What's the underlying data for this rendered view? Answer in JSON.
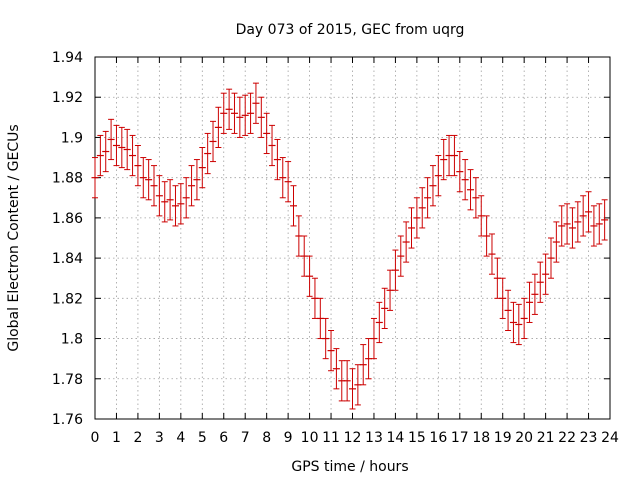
{
  "chart_data": {
    "type": "scatter",
    "title": "Day 073 of 2015, GEC from uqrg",
    "xlabel": "GPS time / hours",
    "ylabel": "Global Electron Content / GECUs",
    "xlim": [
      0,
      24
    ],
    "ylim": [
      1.76,
      1.94
    ],
    "xticks": [
      0,
      1,
      2,
      3,
      4,
      5,
      6,
      7,
      8,
      9,
      10,
      11,
      12,
      13,
      14,
      15,
      16,
      17,
      18,
      19,
      20,
      21,
      22,
      23,
      24
    ],
    "yticks": [
      1.76,
      1.78,
      1.8,
      1.82,
      1.84,
      1.86,
      1.88,
      1.9,
      1.92,
      1.94
    ],
    "ytick_labels": [
      "1.76",
      "1.78",
      "1.8",
      "1.82",
      "1.84",
      "1.86",
      "1.88",
      "1.9",
      "1.92",
      "1.94"
    ],
    "grid": true,
    "error_bar_half_width": 0.01,
    "series": [
      {
        "color": "#cc0000",
        "points": [
          [
            0.0,
            1.88
          ],
          [
            0.25,
            1.891
          ],
          [
            0.5,
            1.893
          ],
          [
            0.75,
            1.899
          ],
          [
            1.0,
            1.896
          ],
          [
            1.25,
            1.895
          ],
          [
            1.5,
            1.894
          ],
          [
            1.75,
            1.891
          ],
          [
            2.0,
            1.886
          ],
          [
            2.25,
            1.88
          ],
          [
            2.5,
            1.879
          ],
          [
            2.75,
            1.876
          ],
          [
            3.0,
            1.871
          ],
          [
            3.25,
            1.868
          ],
          [
            3.5,
            1.869
          ],
          [
            3.75,
            1.866
          ],
          [
            4.0,
            1.867
          ],
          [
            4.25,
            1.87
          ],
          [
            4.5,
            1.876
          ],
          [
            4.75,
            1.879
          ],
          [
            5.0,
            1.885
          ],
          [
            5.25,
            1.892
          ],
          [
            5.5,
            1.898
          ],
          [
            5.75,
            1.905
          ],
          [
            6.0,
            1.912
          ],
          [
            6.25,
            1.914
          ],
          [
            6.5,
            1.912
          ],
          [
            6.75,
            1.91
          ],
          [
            7.0,
            1.911
          ],
          [
            7.25,
            1.912
          ],
          [
            7.5,
            1.917
          ],
          [
            7.75,
            1.91
          ],
          [
            8.0,
            1.902
          ],
          [
            8.25,
            1.896
          ],
          [
            8.5,
            1.889
          ],
          [
            8.75,
            1.88
          ],
          [
            9.0,
            1.878
          ],
          [
            9.25,
            1.866
          ],
          [
            9.5,
            1.851
          ],
          [
            9.75,
            1.841
          ],
          [
            10.0,
            1.831
          ],
          [
            10.25,
            1.82
          ],
          [
            10.5,
            1.81
          ],
          [
            10.75,
            1.8
          ],
          [
            11.0,
            1.794
          ],
          [
            11.25,
            1.785
          ],
          [
            11.5,
            1.779
          ],
          [
            11.75,
            1.779
          ],
          [
            12.0,
            1.775
          ],
          [
            12.25,
            1.777
          ],
          [
            12.5,
            1.787
          ],
          [
            12.75,
            1.79
          ],
          [
            13.0,
            1.8
          ],
          [
            13.25,
            1.808
          ],
          [
            13.5,
            1.815
          ],
          [
            13.75,
            1.824
          ],
          [
            14.0,
            1.834
          ],
          [
            14.25,
            1.841
          ],
          [
            14.5,
            1.848
          ],
          [
            14.75,
            1.855
          ],
          [
            15.0,
            1.86
          ],
          [
            15.25,
            1.865
          ],
          [
            15.5,
            1.87
          ],
          [
            15.75,
            1.876
          ],
          [
            16.0,
            1.881
          ],
          [
            16.25,
            1.889
          ],
          [
            16.5,
            1.891
          ],
          [
            16.75,
            1.891
          ],
          [
            17.0,
            1.883
          ],
          [
            17.25,
            1.879
          ],
          [
            17.5,
            1.874
          ],
          [
            17.75,
            1.87
          ],
          [
            18.0,
            1.861
          ],
          [
            18.25,
            1.851
          ],
          [
            18.5,
            1.842
          ],
          [
            18.75,
            1.83
          ],
          [
            19.0,
            1.82
          ],
          [
            19.25,
            1.814
          ],
          [
            19.5,
            1.808
          ],
          [
            19.75,
            1.807
          ],
          [
            20.0,
            1.81
          ],
          [
            20.25,
            1.818
          ],
          [
            20.5,
            1.822
          ],
          [
            20.75,
            1.828
          ],
          [
            21.0,
            1.832
          ],
          [
            21.25,
            1.84
          ],
          [
            21.5,
            1.848
          ],
          [
            21.75,
            1.856
          ],
          [
            22.0,
            1.857
          ],
          [
            22.25,
            1.855
          ],
          [
            22.5,
            1.858
          ],
          [
            22.75,
            1.861
          ],
          [
            23.0,
            1.863
          ],
          [
            23.25,
            1.856
          ],
          [
            23.5,
            1.857
          ],
          [
            23.75,
            1.859
          ]
        ]
      }
    ]
  }
}
